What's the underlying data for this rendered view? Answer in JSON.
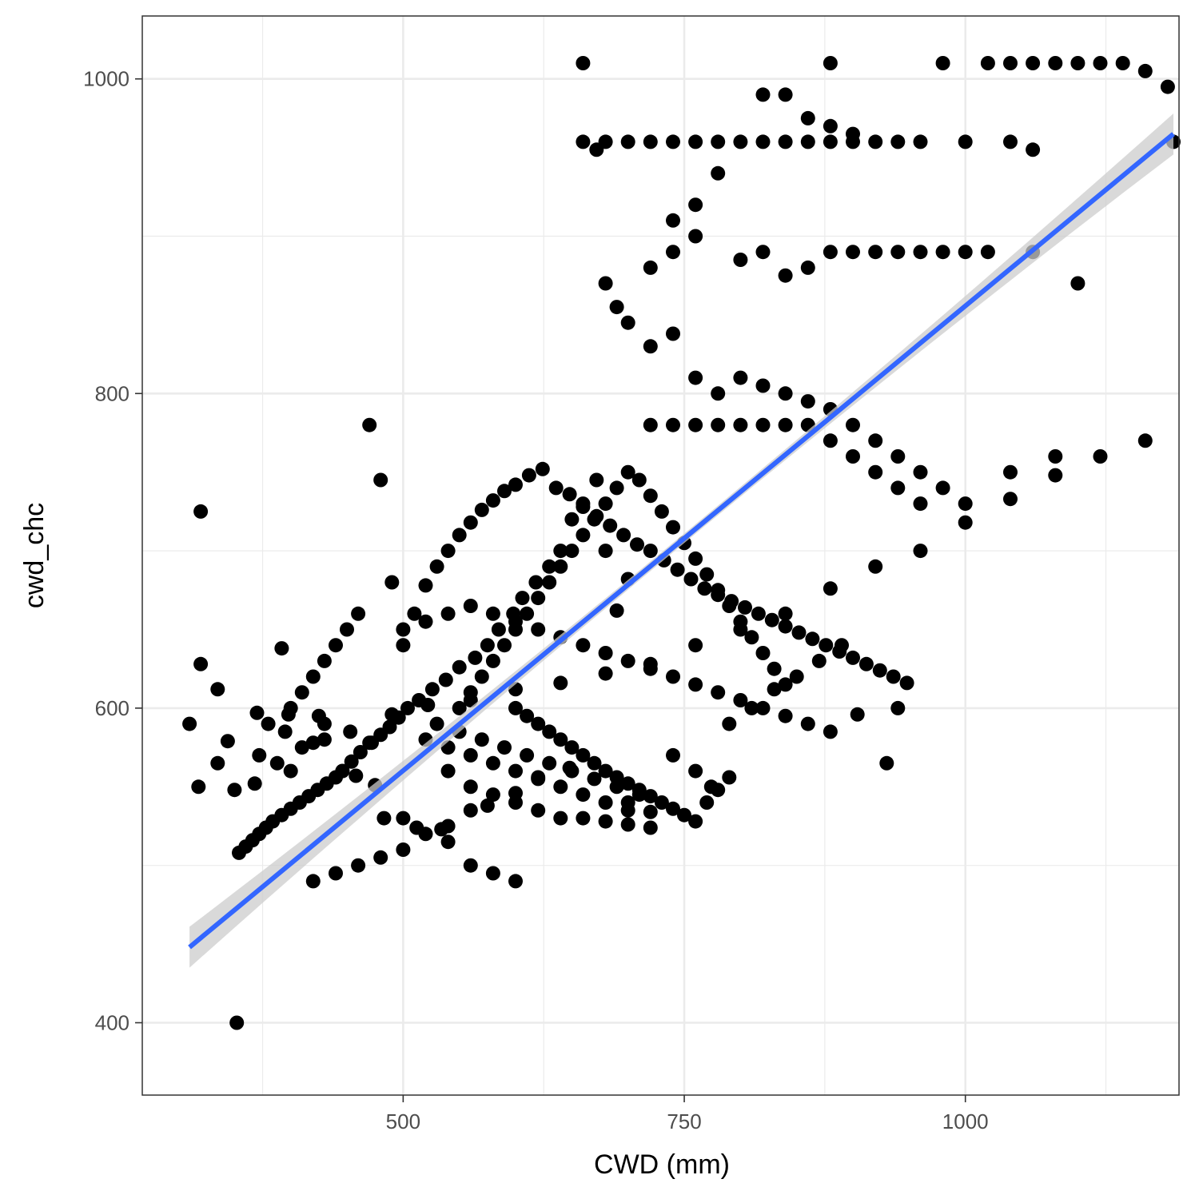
{
  "chart_data": {
    "type": "scatter",
    "xlabel": "CWD (mm)",
    "ylabel": "cwd_chc",
    "xlim": [
      268,
      1190
    ],
    "ylim": [
      354,
      1040
    ],
    "x_ticks": [
      500,
      750,
      1000
    ],
    "x_tick_labels": [
      "500",
      "750",
      "1000"
    ],
    "y_ticks": [
      400,
      600,
      800,
      1000
    ],
    "y_tick_labels": [
      "400",
      "600",
      "800",
      "1000"
    ],
    "grid": true,
    "legend": "none",
    "fit_line": {
      "method": "linear",
      "x": [
        310,
        1185
      ],
      "y": [
        448,
        965
      ],
      "ci_halfwidth_ends": 13,
      "ci_halfwidth_mid": 3,
      "color": "#3366FF",
      "ribbon_color": "#cccccc"
    },
    "point_color": "#000000",
    "points": [
      [
        352,
        400
      ],
      [
        320,
        725
      ],
      [
        310,
        590
      ],
      [
        318,
        550
      ],
      [
        335,
        565
      ],
      [
        350,
        548
      ],
      [
        372,
        570
      ],
      [
        368,
        552
      ],
      [
        380,
        590
      ],
      [
        395,
        585
      ],
      [
        388,
        565
      ],
      [
        400,
        560
      ],
      [
        410,
        575
      ],
      [
        420,
        578
      ],
      [
        430,
        590
      ],
      [
        446,
        560
      ],
      [
        453,
        585
      ],
      [
        470,
        578
      ],
      [
        490,
        596
      ],
      [
        522,
        602
      ],
      [
        560,
        605
      ],
      [
        600,
        612
      ],
      [
        640,
        616
      ],
      [
        680,
        622
      ],
      [
        720,
        628
      ],
      [
        760,
        640
      ],
      [
        800,
        650
      ],
      [
        840,
        660
      ],
      [
        880,
        676
      ],
      [
        920,
        690
      ],
      [
        960,
        700
      ],
      [
        1000,
        718
      ],
      [
        1040,
        733
      ],
      [
        1080,
        748
      ],
      [
        1120,
        760
      ],
      [
        1160,
        770
      ],
      [
        1185,
        960
      ],
      [
        320,
        628
      ],
      [
        335,
        612
      ],
      [
        344,
        579
      ],
      [
        370,
        597
      ],
      [
        392,
        638
      ],
      [
        398,
        596
      ],
      [
        425,
        595
      ],
      [
        430,
        580
      ],
      [
        458,
        557
      ],
      [
        475,
        551
      ],
      [
        483,
        530
      ],
      [
        500,
        530
      ],
      [
        512,
        524
      ],
      [
        534,
        523
      ],
      [
        540,
        525
      ],
      [
        560,
        535
      ],
      [
        575,
        538
      ],
      [
        600,
        546
      ],
      [
        620,
        556
      ],
      [
        648,
        562
      ],
      [
        700,
        540
      ],
      [
        720,
        534
      ],
      [
        740,
        570
      ],
      [
        760,
        560
      ],
      [
        774,
        550
      ],
      [
        790,
        590
      ],
      [
        810,
        600
      ],
      [
        830,
        612
      ],
      [
        850,
        620
      ],
      [
        870,
        630
      ],
      [
        890,
        640
      ],
      [
        904,
        596
      ],
      [
        930,
        565
      ],
      [
        940,
        600
      ],
      [
        700,
        682
      ],
      [
        690,
        662
      ],
      [
        680,
        700
      ],
      [
        672,
        745
      ],
      [
        660,
        730
      ],
      [
        650,
        720
      ],
      [
        640,
        700
      ],
      [
        630,
        690
      ],
      [
        618,
        680
      ],
      [
        606,
        670
      ],
      [
        598,
        660
      ],
      [
        585,
        650
      ],
      [
        575,
        640
      ],
      [
        564,
        632
      ],
      [
        550,
        626
      ],
      [
        538,
        618
      ],
      [
        526,
        612
      ],
      [
        514,
        605
      ],
      [
        504,
        600
      ],
      [
        496,
        594
      ],
      [
        488,
        588
      ],
      [
        480,
        583
      ],
      [
        472,
        578
      ],
      [
        462,
        572
      ],
      [
        454,
        566
      ],
      [
        446,
        560
      ],
      [
        440,
        556
      ],
      [
        432,
        552
      ],
      [
        424,
        548
      ],
      [
        416,
        544
      ],
      [
        408,
        540
      ],
      [
        400,
        536
      ],
      [
        392,
        532
      ],
      [
        384,
        528
      ],
      [
        378,
        524
      ],
      [
        372,
        520
      ],
      [
        366,
        516
      ],
      [
        360,
        512
      ],
      [
        354,
        508
      ],
      [
        600,
        600
      ],
      [
        610,
        595
      ],
      [
        620,
        590
      ],
      [
        630,
        585
      ],
      [
        640,
        580
      ],
      [
        650,
        575
      ],
      [
        660,
        570
      ],
      [
        670,
        565
      ],
      [
        680,
        560
      ],
      [
        690,
        556
      ],
      [
        700,
        552
      ],
      [
        710,
        548
      ],
      [
        720,
        544
      ],
      [
        730,
        540
      ],
      [
        740,
        536
      ],
      [
        750,
        532
      ],
      [
        760,
        528
      ],
      [
        770,
        540
      ],
      [
        780,
        548
      ],
      [
        790,
        556
      ],
      [
        500,
        640
      ],
      [
        510,
        660
      ],
      [
        520,
        678
      ],
      [
        530,
        690
      ],
      [
        540,
        700
      ],
      [
        550,
        710
      ],
      [
        560,
        718
      ],
      [
        570,
        726
      ],
      [
        580,
        732
      ],
      [
        590,
        738
      ],
      [
        600,
        742
      ],
      [
        612,
        748
      ],
      [
        624,
        752
      ],
      [
        636,
        740
      ],
      [
        648,
        736
      ],
      [
        660,
        728
      ],
      [
        672,
        722
      ],
      [
        684,
        716
      ],
      [
        696,
        710
      ],
      [
        708,
        704
      ],
      [
        720,
        700
      ],
      [
        732,
        694
      ],
      [
        744,
        688
      ],
      [
        756,
        682
      ],
      [
        768,
        676
      ],
      [
        780,
        672
      ],
      [
        792,
        668
      ],
      [
        804,
        664
      ],
      [
        816,
        660
      ],
      [
        828,
        656
      ],
      [
        840,
        652
      ],
      [
        852,
        648
      ],
      [
        864,
        644
      ],
      [
        876,
        640
      ],
      [
        888,
        636
      ],
      [
        900,
        632
      ],
      [
        912,
        628
      ],
      [
        924,
        624
      ],
      [
        936,
        620
      ],
      [
        948,
        616
      ],
      [
        660,
        960
      ],
      [
        680,
        960
      ],
      [
        700,
        960
      ],
      [
        720,
        960
      ],
      [
        740,
        960
      ],
      [
        760,
        960
      ],
      [
        780,
        960
      ],
      [
        800,
        960
      ],
      [
        820,
        960
      ],
      [
        840,
        960
      ],
      [
        860,
        960
      ],
      [
        880,
        960
      ],
      [
        900,
        960
      ],
      [
        920,
        960
      ],
      [
        940,
        960
      ],
      [
        960,
        960
      ],
      [
        1000,
        960
      ],
      [
        1040,
        960
      ],
      [
        1060,
        955
      ],
      [
        672,
        955
      ],
      [
        720,
        880
      ],
      [
        740,
        890
      ],
      [
        760,
        900
      ],
      [
        800,
        885
      ],
      [
        820,
        890
      ],
      [
        840,
        875
      ],
      [
        860,
        880
      ],
      [
        880,
        890
      ],
      [
        900,
        890
      ],
      [
        920,
        890
      ],
      [
        940,
        890
      ],
      [
        960,
        890
      ],
      [
        980,
        890
      ],
      [
        1000,
        890
      ],
      [
        1020,
        890
      ],
      [
        1060,
        890
      ],
      [
        1100,
        870
      ],
      [
        680,
        870
      ],
      [
        690,
        855
      ],
      [
        700,
        845
      ],
      [
        720,
        830
      ],
      [
        740,
        838
      ],
      [
        760,
        810
      ],
      [
        780,
        800
      ],
      [
        800,
        810
      ],
      [
        820,
        805
      ],
      [
        840,
        800
      ],
      [
        860,
        795
      ],
      [
        880,
        790
      ],
      [
        900,
        780
      ],
      [
        920,
        770
      ],
      [
        940,
        760
      ],
      [
        960,
        750
      ],
      [
        980,
        740
      ],
      [
        1000,
        730
      ],
      [
        1040,
        750
      ],
      [
        1080,
        760
      ],
      [
        720,
        780
      ],
      [
        740,
        780
      ],
      [
        760,
        780
      ],
      [
        780,
        780
      ],
      [
        800,
        780
      ],
      [
        820,
        780
      ],
      [
        840,
        780
      ],
      [
        860,
        780
      ],
      [
        880,
        770
      ],
      [
        900,
        760
      ],
      [
        920,
        750
      ],
      [
        940,
        740
      ],
      [
        960,
        730
      ],
      [
        660,
        1010
      ],
      [
        880,
        1010
      ],
      [
        980,
        1010
      ],
      [
        1020,
        1010
      ],
      [
        1040,
        1010
      ],
      [
        1060,
        1010
      ],
      [
        1080,
        1010
      ],
      [
        1100,
        1010
      ],
      [
        1120,
        1010
      ],
      [
        1140,
        1010
      ],
      [
        1160,
        1005
      ],
      [
        1180,
        995
      ],
      [
        820,
        990
      ],
      [
        840,
        990
      ],
      [
        860,
        975
      ],
      [
        880,
        970
      ],
      [
        900,
        965
      ],
      [
        780,
        940
      ],
      [
        760,
        920
      ],
      [
        740,
        910
      ],
      [
        470,
        780
      ],
      [
        480,
        745
      ],
      [
        490,
        680
      ],
      [
        460,
        660
      ],
      [
        450,
        650
      ],
      [
        440,
        640
      ],
      [
        430,
        630
      ],
      [
        420,
        620
      ],
      [
        410,
        610
      ],
      [
        400,
        600
      ],
      [
        500,
        650
      ],
      [
        520,
        655
      ],
      [
        540,
        660
      ],
      [
        560,
        665
      ],
      [
        580,
        660
      ],
      [
        600,
        655
      ],
      [
        620,
        650
      ],
      [
        640,
        645
      ],
      [
        660,
        640
      ],
      [
        680,
        635
      ],
      [
        700,
        630
      ],
      [
        720,
        625
      ],
      [
        740,
        620
      ],
      [
        760,
        615
      ],
      [
        780,
        610
      ],
      [
        800,
        605
      ],
      [
        820,
        600
      ],
      [
        840,
        595
      ],
      [
        860,
        590
      ],
      [
        880,
        585
      ],
      [
        550,
        600
      ],
      [
        560,
        610
      ],
      [
        570,
        620
      ],
      [
        580,
        630
      ],
      [
        590,
        640
      ],
      [
        600,
        650
      ],
      [
        610,
        660
      ],
      [
        620,
        670
      ],
      [
        630,
        680
      ],
      [
        640,
        690
      ],
      [
        650,
        700
      ],
      [
        660,
        710
      ],
      [
        670,
        720
      ],
      [
        680,
        730
      ],
      [
        690,
        740
      ],
      [
        700,
        750
      ],
      [
        710,
        745
      ],
      [
        720,
        735
      ],
      [
        730,
        725
      ],
      [
        740,
        715
      ],
      [
        750,
        705
      ],
      [
        760,
        695
      ],
      [
        770,
        685
      ],
      [
        780,
        675
      ],
      [
        790,
        665
      ],
      [
        800,
        655
      ],
      [
        810,
        645
      ],
      [
        820,
        635
      ],
      [
        830,
        625
      ],
      [
        840,
        615
      ],
      [
        520,
        580
      ],
      [
        530,
        590
      ],
      [
        540,
        575
      ],
      [
        550,
        585
      ],
      [
        560,
        570
      ],
      [
        570,
        580
      ],
      [
        580,
        565
      ],
      [
        590,
        575
      ],
      [
        600,
        560
      ],
      [
        610,
        570
      ],
      [
        620,
        555
      ],
      [
        630,
        565
      ],
      [
        640,
        550
      ],
      [
        650,
        560
      ],
      [
        660,
        545
      ],
      [
        670,
        555
      ],
      [
        680,
        540
      ],
      [
        690,
        550
      ],
      [
        700,
        535
      ],
      [
        710,
        545
      ],
      [
        540,
        560
      ],
      [
        560,
        550
      ],
      [
        580,
        545
      ],
      [
        600,
        540
      ],
      [
        620,
        535
      ],
      [
        640,
        530
      ],
      [
        660,
        530
      ],
      [
        680,
        528
      ],
      [
        700,
        526
      ],
      [
        720,
        524
      ],
      [
        560,
        500
      ],
      [
        580,
        495
      ],
      [
        600,
        490
      ],
      [
        520,
        520
      ],
      [
        540,
        515
      ],
      [
        500,
        510
      ],
      [
        480,
        505
      ],
      [
        460,
        500
      ],
      [
        440,
        495
      ],
      [
        420,
        490
      ]
    ]
  }
}
